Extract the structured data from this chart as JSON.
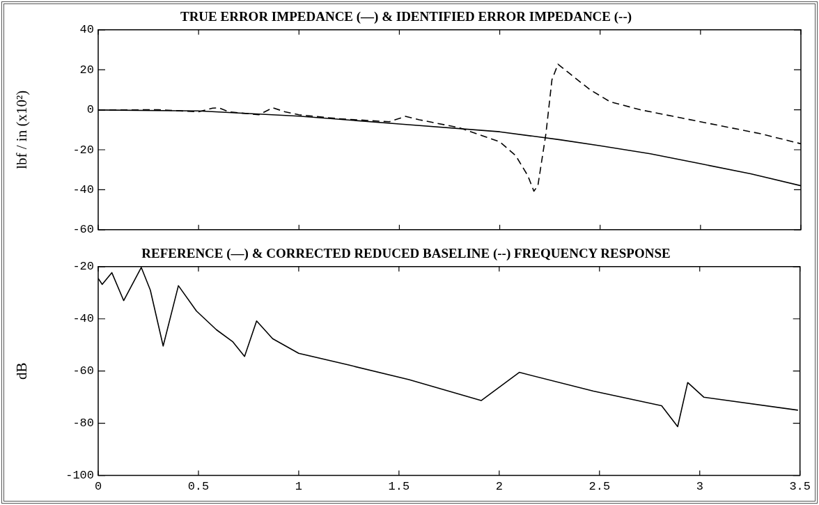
{
  "chart_data": [
    {
      "type": "line",
      "title": "TRUE ERROR IMPEDANCE (—) & IDENTIFIED ERROR IMPEDANCE (--)",
      "ylabel": "lbf / in (x10²)",
      "xlim": [
        0,
        3.5
      ],
      "xticks": [
        0,
        0.5,
        1,
        1.5,
        2,
        2.5,
        3,
        3.5
      ],
      "ylim": [
        -60,
        40
      ],
      "yticks": [
        -60,
        -40,
        -20,
        0,
        20,
        40
      ],
      "tick_labels": "y",
      "grid": false,
      "legend": false,
      "marker": "none",
      "series": [
        {
          "color": "#000000",
          "line_style": "solid",
          "x": [
            0,
            0.5,
            1,
            1.5,
            2,
            2.3,
            2.5,
            2.75,
            3,
            3.25,
            3.5
          ],
          "values": [
            -0.1,
            -0.6,
            -3.2,
            -7.1,
            -11,
            -15,
            -18,
            -22,
            -27,
            -32,
            -38
          ]
        },
        {
          "color": "#000000",
          "line_style": "dashed",
          "x": [
            0,
            0.3,
            0.5,
            0.57,
            0.6,
            0.65,
            0.8,
            0.87,
            0.93,
            1.0,
            1.2,
            1.45,
            1.53,
            1.6,
            1.8,
            2.0,
            2.08,
            2.14,
            2.17,
            2.19,
            2.23,
            2.26,
            2.29,
            2.35,
            2.45,
            2.55,
            2.7,
            2.9,
            3.1,
            3.3,
            3.5
          ],
          "values": [
            -0.1,
            0,
            -1,
            0.8,
            1,
            -1,
            -2.5,
            1,
            -1,
            -2.5,
            -4.5,
            -6,
            -3.3,
            -5,
            -9,
            -16,
            -23,
            -33,
            -40.7,
            -38,
            -12,
            15,
            22.8,
            18,
            10,
            4,
            0,
            -4,
            -8,
            -12,
            -17
          ]
        }
      ]
    },
    {
      "type": "line",
      "title": "REFERENCE (—) & CORRECTED REDUCED BASELINE (--) FREQUENCY RESPONSE",
      "ylabel": "dB",
      "xlim": [
        0,
        3.5
      ],
      "xticks": [
        0,
        0.5,
        1,
        1.5,
        2,
        2.5,
        3,
        3.5
      ],
      "ylim": [
        -100,
        -20
      ],
      "yticks": [
        -100,
        -80,
        -60,
        -40,
        -20
      ],
      "grid": false,
      "legend": false,
      "marker": "none",
      "series": [
        {
          "color": "#000000",
          "line_style": "solid",
          "x": [
            0,
            0.02,
            0.068,
            0.127,
            0.215,
            0.26,
            0.324,
            0.4,
            0.49,
            0.59,
            0.67,
            0.73,
            0.79,
            0.87,
            1.0,
            1.25,
            1.55,
            1.91,
            2.1,
            2.47,
            2.81,
            2.89,
            2.94,
            3.02,
            3.49
          ],
          "values": [
            -24.5,
            -26.8,
            -22.3,
            -33,
            -20.3,
            -29,
            -50.4,
            -27.3,
            -37,
            -44.2,
            -48.7,
            -54.4,
            -40.8,
            -47.6,
            -53.2,
            -57.7,
            -63.3,
            -71.3,
            -60.5,
            -67.7,
            -73.3,
            -81.3,
            -64.4,
            -70,
            -75
          ]
        }
      ]
    }
  ]
}
